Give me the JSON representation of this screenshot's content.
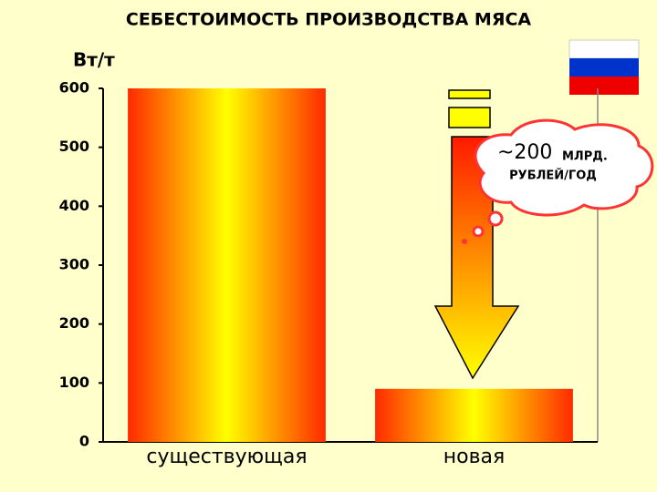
{
  "chart_data": {
    "type": "bar",
    "title": "СЕБЕСТОИМОСТЬ ПРОИЗВОДСТВА МЯСА",
    "y_label": "Вт/т",
    "categories": [
      "существующая",
      "новая"
    ],
    "values": [
      600,
      90
    ],
    "ylim": [
      0,
      600
    ],
    "yticks": [
      0,
      100,
      200,
      300,
      400,
      500,
      600
    ],
    "grid": false,
    "annotations": [
      "~200",
      "МЛРД.",
      "РУБЛЕЙ/ГОД"
    ]
  }
}
